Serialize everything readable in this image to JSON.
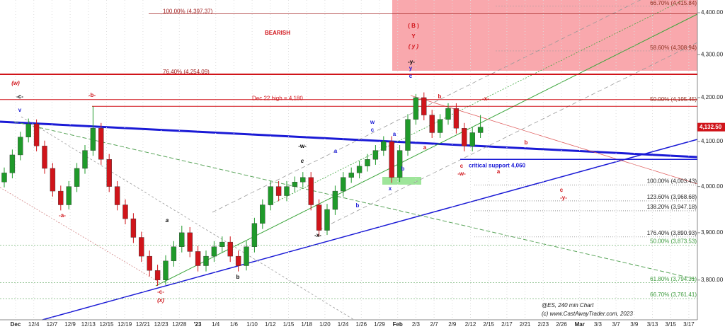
{
  "chart_data": {
    "type": "candlestick",
    "log_scale": true,
    "grid": true,
    "up_color": "#1f9a2a",
    "down_color": "#d0141a",
    "ylim": [
      3718,
      4431
    ],
    "yticks": [
      {
        "value": 3800,
        "label": "3,800.00"
      },
      {
        "value": 3900,
        "label": "3,900.00"
      },
      {
        "value": 4000,
        "label": "4,000.00"
      },
      {
        "value": 4100,
        "label": "4,100.00"
      },
      {
        "value": 4200,
        "label": "4,200.00"
      },
      {
        "value": 4300,
        "label": "4,300.00"
      },
      {
        "value": 4400,
        "label": "4,400.00"
      }
    ],
    "categories": [
      "Dec",
      "12/4",
      "12/7",
      "12/9",
      "12/13",
      "12/15",
      "12/19",
      "12/21",
      "12/23",
      "12/28",
      "'23",
      "1/4",
      "1/6",
      "1/10",
      "1/12",
      "1/15",
      "1/18",
      "1/20",
      "1/24",
      "1/26",
      "1/29",
      "Feb",
      "2/3",
      "2/7",
      "2/9",
      "2/12",
      "2/15",
      "2/17",
      "2/21",
      "2/23",
      "2/26",
      "Mar",
      "3/3",
      "3/7",
      "3/9",
      "3/13",
      "3/15",
      "3/17"
    ],
    "candles": [
      [
        4010,
        4042,
        3998,
        4030
      ],
      [
        4030,
        4082,
        4018,
        4070
      ],
      [
        4070,
        4122,
        4058,
        4110
      ],
      [
        4110,
        4152,
        4098,
        4140
      ],
      [
        4140,
        4150,
        4078,
        4090
      ],
      [
        4090,
        4102,
        4028,
        4040
      ],
      [
        4040,
        4052,
        3978,
        3990
      ],
      [
        3990,
        4002,
        3948,
        3960
      ],
      [
        3960,
        4012,
        3950,
        4000
      ],
      [
        4000,
        4052,
        3988,
        4040
      ],
      [
        4040,
        4092,
        4028,
        4080
      ],
      [
        4080,
        4180,
        4068,
        4130
      ],
      [
        4130,
        4142,
        4048,
        4060
      ],
      [
        4060,
        4072,
        3988,
        4000
      ],
      [
        4000,
        4012,
        3948,
        3960
      ],
      [
        3960,
        3972,
        3918,
        3930
      ],
      [
        3930,
        3942,
        3878,
        3890
      ],
      [
        3890,
        3902,
        3838,
        3850
      ],
      [
        3850,
        3862,
        3808,
        3820
      ],
      [
        3820,
        3832,
        3788,
        3800
      ],
      [
        3800,
        3852,
        3790,
        3840
      ],
      [
        3840,
        3882,
        3828,
        3870
      ],
      [
        3870,
        3915,
        3858,
        3900
      ],
      [
        3900,
        3912,
        3848,
        3860
      ],
      [
        3860,
        3872,
        3818,
        3830
      ],
      [
        3830,
        3862,
        3818,
        3850
      ],
      [
        3850,
        3882,
        3838,
        3870
      ],
      [
        3870,
        3892,
        3858,
        3880
      ],
      [
        3880,
        3892,
        3838,
        3850
      ],
      [
        3850,
        3862,
        3818,
        3830
      ],
      [
        3830,
        3882,
        3820,
        3870
      ],
      [
        3870,
        3932,
        3858,
        3920
      ],
      [
        3920,
        3972,
        3908,
        3960
      ],
      [
        3960,
        4012,
        3948,
        4000
      ],
      [
        4000,
        4012,
        3968,
        3980
      ],
      [
        3980,
        4012,
        3968,
        4000
      ],
      [
        4000,
        4022,
        3988,
        4010
      ],
      [
        4010,
        4032,
        3998,
        4020
      ],
      [
        4020,
        4032,
        3948,
        3960
      ],
      [
        3960,
        3972,
        3893,
        3905
      ],
      [
        3905,
        3962,
        3895,
        3950
      ],
      [
        3950,
        4002,
        3938,
        3990
      ],
      [
        3990,
        4032,
        3978,
        4020
      ],
      [
        4020,
        4042,
        4008,
        4030
      ],
      [
        4030,
        4057,
        4018,
        4045
      ],
      [
        4045,
        4072,
        4033,
        4060
      ],
      [
        4060,
        4092,
        4048,
        4080
      ],
      [
        4080,
        4112,
        4068,
        4100
      ],
      [
        4100,
        4112,
        4008,
        4020
      ],
      [
        4020,
        4092,
        4010,
        4080
      ],
      [
        4080,
        4162,
        4068,
        4150
      ],
      [
        4150,
        4208,
        4138,
        4200
      ],
      [
        4200,
        4212,
        4148,
        4160
      ],
      [
        4160,
        4172,
        4108,
        4120
      ],
      [
        4120,
        4162,
        4108,
        4150
      ],
      [
        4150,
        4187,
        4138,
        4175
      ],
      [
        4175,
        4187,
        4118,
        4130
      ],
      [
        4130,
        4142,
        4078,
        4090
      ],
      [
        4090,
        4132,
        4078,
        4120
      ],
      [
        4120,
        4160,
        4108,
        4132.5
      ]
    ],
    "last_price": {
      "value": 4132.5,
      "label": "4,132.50"
    },
    "levels": [
      {
        "label": "100.00% (4,397.37)",
        "value": 4397.37
      },
      {
        "label": "66.70% (4,415.84)",
        "value": 4415.84
      },
      {
        "label": "58.60% (4,308.94)",
        "value": 4308.94
      },
      {
        "label": "76.40% (4,254.09)",
        "value": 4254.09
      },
      {
        "label": "50.00% (4,195.45)",
        "value": 4195.45
      },
      {
        "label": "Dec 22 high = 4,180",
        "value": 4180
      },
      {
        "label": "critical support 4,060",
        "value": 4060
      },
      {
        "label": "100.00% (4,003.43)",
        "value": 4003.43
      },
      {
        "label": "123.60% (3,968.68)",
        "value": 3968.68
      },
      {
        "label": "138.20% (3,947.18)",
        "value": 3947.18
      },
      {
        "label": "176.40% (3,890.93)",
        "value": 3890.93
      },
      {
        "label": "50.00% (3,873.53)",
        "value": 3873.53
      },
      {
        "label": "61.80% (3,794.31)",
        "value": 3794.31
      },
      {
        "label": "66.70% (3,761.41)",
        "value": 3761.41
      }
    ],
    "annotations": [
      "(w)",
      "-c-",
      "v",
      "-b-",
      "-a-",
      "a",
      "b",
      "-c-",
      "(x)",
      "c",
      "-w-",
      "-x-",
      "a",
      "b",
      "w",
      "c",
      "a",
      "x",
      "b",
      "y",
      "c",
      "b",
      "-x-",
      "a",
      "c",
      "-w-",
      "b",
      "a",
      "c",
      "-y-",
      "( B )",
      "Y",
      "( y )",
      "-y-",
      "BEARISH"
    ],
    "footer": [
      "@ES, 240 min Chart",
      "(c) www.CastAwayTrader.com, 2023"
    ]
  }
}
